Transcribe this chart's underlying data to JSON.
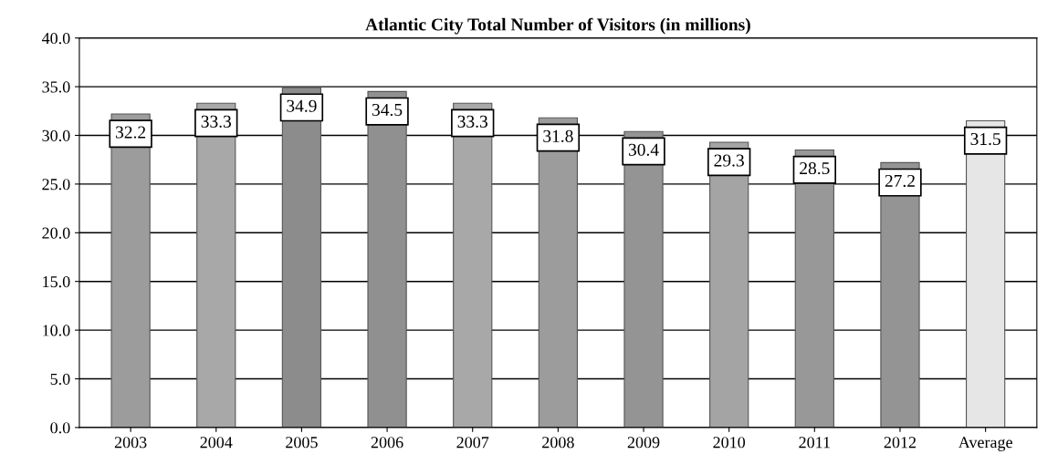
{
  "chart_data": {
    "type": "bar",
    "title": "Atlantic City Total Number of Visitors (in millions)",
    "categories": [
      "2003",
      "2004",
      "2005",
      "2006",
      "2007",
      "2008",
      "2009",
      "2010",
      "2011",
      "2012",
      "Average"
    ],
    "values": [
      32.2,
      33.3,
      34.9,
      34.5,
      33.3,
      31.8,
      30.4,
      29.3,
      28.5,
      27.2,
      31.5
    ],
    "colors": [
      "#9c9c9c",
      "#a8a8a8",
      "#8c8c8c",
      "#909090",
      "#a8a8a8",
      "#9c9c9c",
      "#949494",
      "#a4a4a4",
      "#989898",
      "#949494",
      "#e6e6e6"
    ],
    "ylim": [
      0,
      40
    ],
    "yticks": [
      {
        "value": 0,
        "label": "0.0"
      },
      {
        "value": 5,
        "label": "5.0"
      },
      {
        "value": 10,
        "label": "10.0"
      },
      {
        "value": 15,
        "label": "15.0"
      },
      {
        "value": 20,
        "label": "20.0"
      },
      {
        "value": 25,
        "label": "25.0"
      },
      {
        "value": 30,
        "label": "30.0"
      },
      {
        "value": 35,
        "label": "35.0"
      },
      {
        "value": 40,
        "label": "40.0"
      }
    ],
    "grid": "y",
    "data_labels": true
  }
}
